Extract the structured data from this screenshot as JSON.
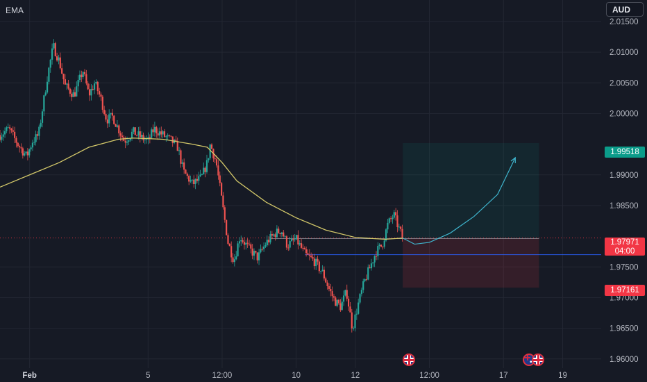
{
  "indicator_label": "EMA",
  "currency_button": "AUD",
  "price_tags": {
    "target": "1.99518",
    "current_price": "1.97971",
    "countdown": "04:00",
    "stop": "1.97161"
  },
  "colors": {
    "background": "#161a25",
    "up_candle": "#26a69a",
    "down_candle": "#ef5350",
    "ema_line": "#d4c96a",
    "projection": "#3fb6cf",
    "target_zone": "#0b9c8a",
    "stop_zone": "#f23645"
  },
  "events": [
    {
      "icon": "uk-flag-icon",
      "date_position": "before 12:00 (day 14)"
    },
    {
      "icon": "au-flag-icon",
      "date_position": "day 18"
    },
    {
      "icon": "uk-flag-icon",
      "date_position": "day 18"
    }
  ],
  "chart_data": {
    "type": "candlestick",
    "title": "",
    "y_axis": {
      "ticks": [
        "2.01500",
        "2.01000",
        "2.00500",
        "2.00000",
        "1.99000",
        "1.98500",
        "1.97500",
        "1.97000",
        "1.96500",
        "1.96000"
      ],
      "range": [
        1.9585,
        2.0185
      ]
    },
    "x_axis": {
      "ticks": [
        "Feb",
        "5",
        "12:00",
        "10",
        "12",
        "12:00",
        "17",
        "19"
      ],
      "tick_days": [
        1,
        5,
        7.5,
        10,
        12,
        14.5,
        17,
        19
      ],
      "range_days": [
        0,
        20.3
      ]
    },
    "price_series": [
      [
        0.0,
        1.9965
      ],
      [
        0.3,
        1.9975
      ],
      [
        0.6,
        1.995
      ],
      [
        0.9,
        1.993
      ],
      [
        1.1,
        1.9955
      ],
      [
        1.3,
        1.9965
      ],
      [
        1.6,
        2.006
      ],
      [
        1.8,
        2.011
      ],
      [
        2.0,
        2.0085
      ],
      [
        2.2,
        2.0045
      ],
      [
        2.5,
        2.003
      ],
      [
        2.8,
        2.007
      ],
      [
        3.0,
        2.003
      ],
      [
        3.2,
        2.005
      ],
      [
        3.4,
        2.0025
      ],
      [
        3.6,
        1.999
      ],
      [
        3.8,
        1.9995
      ],
      [
        4.0,
        1.9975
      ],
      [
        4.2,
        1.9955
      ],
      [
        4.5,
        1.997
      ],
      [
        4.8,
        1.996
      ],
      [
        5.0,
        1.9955
      ],
      [
        5.2,
        1.9975
      ],
      [
        5.5,
        1.9965
      ],
      [
        5.8,
        1.9955
      ],
      [
        6.0,
        1.9945
      ],
      [
        6.2,
        1.9905
      ],
      [
        6.5,
        1.9885
      ],
      [
        6.8,
        1.9895
      ],
      [
        7.0,
        1.992
      ],
      [
        7.1,
        1.995
      ],
      [
        7.3,
        1.992
      ],
      [
        7.5,
        1.9855
      ],
      [
        7.7,
        1.979
      ],
      [
        7.9,
        1.976
      ],
      [
        8.1,
        1.98
      ],
      [
        8.4,
        1.978
      ],
      [
        8.7,
        1.9765
      ],
      [
        9.0,
        1.979
      ],
      [
        9.3,
        1.9805
      ],
      [
        9.5,
        1.981
      ],
      [
        9.7,
        1.9785
      ],
      [
        10.0,
        1.9795
      ],
      [
        10.3,
        1.977
      ],
      [
        10.6,
        1.976
      ],
      [
        10.9,
        1.974
      ],
      [
        11.1,
        1.9715
      ],
      [
        11.3,
        1.9695
      ],
      [
        11.5,
        1.9685
      ],
      [
        11.7,
        1.971
      ],
      [
        11.9,
        1.965
      ],
      [
        12.1,
        1.969
      ],
      [
        12.3,
        1.9725
      ],
      [
        12.5,
        1.975
      ],
      [
        12.7,
        1.9775
      ],
      [
        12.9,
        1.9785
      ],
      [
        13.1,
        1.982
      ],
      [
        13.3,
        1.9835
      ],
      [
        13.45,
        1.9815
      ],
      [
        13.6,
        1.9797
      ]
    ],
    "ema_series": [
      [
        0.0,
        1.988
      ],
      [
        1.0,
        1.99
      ],
      [
        2.0,
        1.992
      ],
      [
        3.0,
        1.9945
      ],
      [
        4.0,
        1.9958
      ],
      [
        4.5,
        1.996
      ],
      [
        5.5,
        1.9958
      ],
      [
        6.5,
        1.995
      ],
      [
        7.0,
        1.9945
      ],
      [
        7.5,
        1.992
      ],
      [
        8.0,
        1.989
      ],
      [
        9.0,
        1.9855
      ],
      [
        10.0,
        1.983
      ],
      [
        11.0,
        1.981
      ],
      [
        12.0,
        1.9798
      ],
      [
        13.0,
        1.9795
      ],
      [
        13.6,
        1.9797
      ]
    ],
    "projection_series": [
      [
        13.6,
        1.9797
      ],
      [
        14.0,
        1.9787
      ],
      [
        14.5,
        1.979
      ],
      [
        15.2,
        1.9805
      ],
      [
        16.0,
        1.9832
      ],
      [
        16.8,
        1.9868
      ],
      [
        17.4,
        1.9928
      ]
    ],
    "position_box": {
      "x_start": 13.6,
      "x_end": 18.2,
      "entry": 1.97971,
      "target": 1.99518,
      "stop": 1.97161
    },
    "horizontal_lines": [
      {
        "price": 1.97971,
        "style": "dotted",
        "color": "#f23645"
      },
      {
        "price": 1.977,
        "style": "solid",
        "color": "#2962ff"
      }
    ],
    "grid": true,
    "legend": "none"
  }
}
